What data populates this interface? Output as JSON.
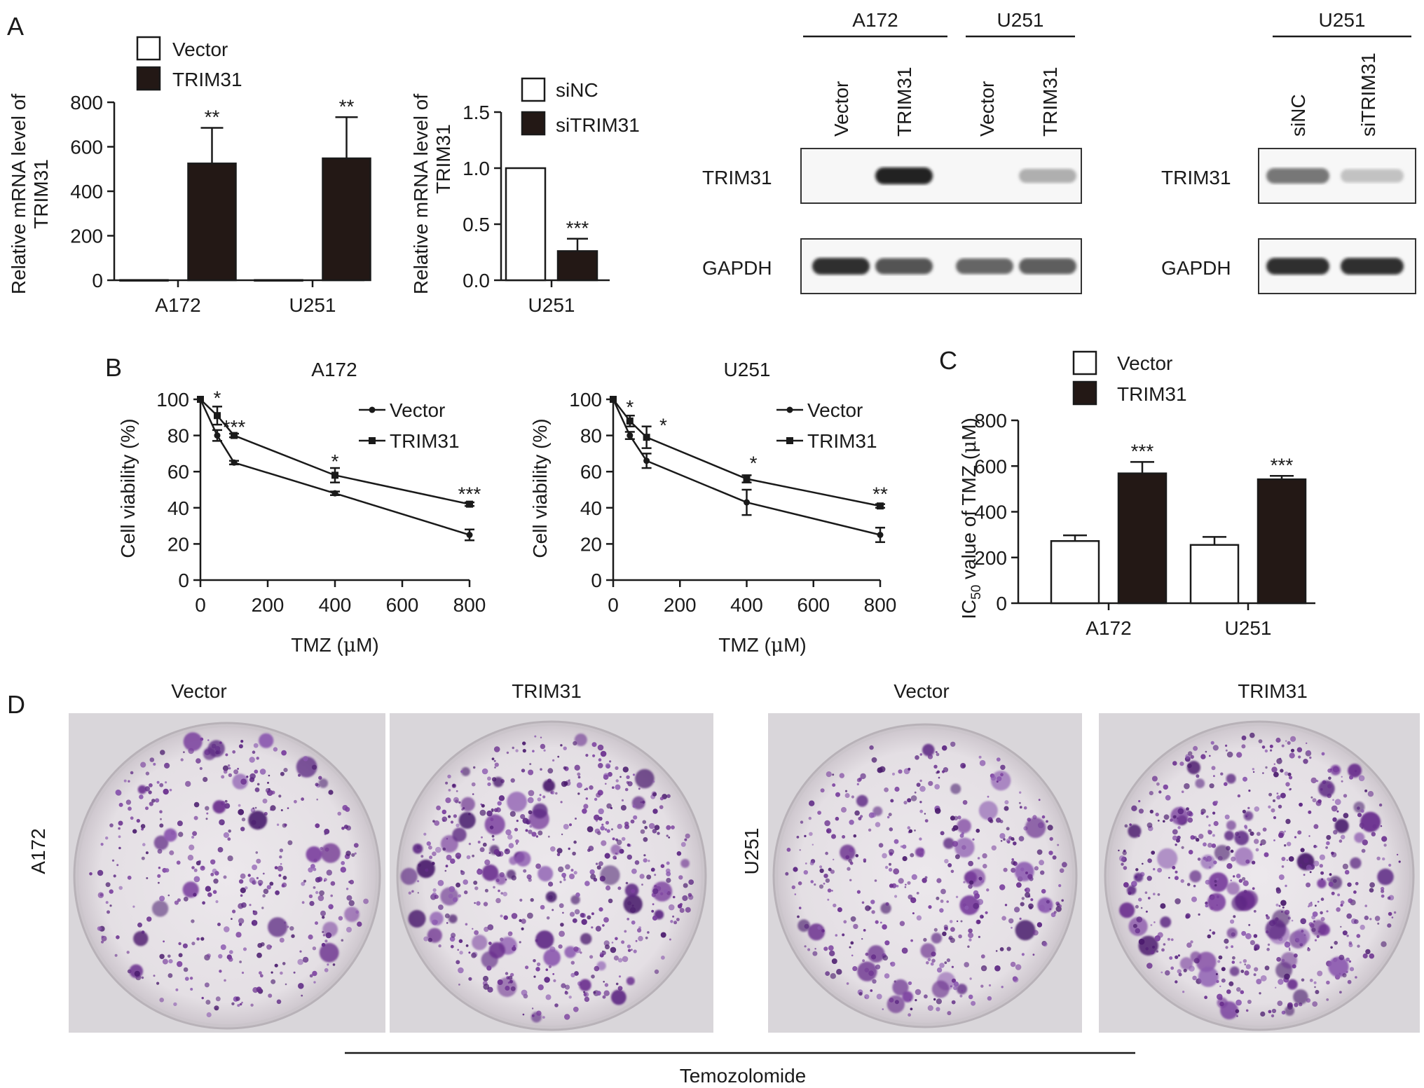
{
  "colors": {
    "dark": "#231815",
    "light": "#ffffff",
    "dish_purple": "#6a2f8e",
    "dish_bg": "#e6e1e6",
    "blot_bg": "#f6f6f6"
  },
  "panels": {
    "A": "A",
    "B": "B",
    "C": "C",
    "D": "D"
  },
  "chart_data": [
    {
      "id": "A1",
      "type": "bar",
      "categories": [
        "A172",
        "U251"
      ],
      "series": [
        {
          "name": "Vector",
          "color": "#ffffff",
          "values": [
            1,
            1
          ],
          "errors": [
            0,
            0
          ],
          "sig": [
            "",
            ""
          ]
        },
        {
          "name": "TRIM31",
          "color": "#231815",
          "values": [
            525,
            548
          ],
          "errors": [
            160,
            185
          ],
          "sig": [
            "**",
            "**"
          ]
        }
      ],
      "ylabel_line1": "Relative mRNA level of",
      "ylabel_line2": "TRIM31",
      "ylim": [
        0,
        800
      ],
      "yticks": [
        "0",
        "200",
        "400",
        "600",
        "800"
      ],
      "legend": "top-left"
    },
    {
      "id": "A2",
      "type": "bar",
      "categories": [
        "U251"
      ],
      "series": [
        {
          "name": "siNC",
          "color": "#ffffff",
          "values": [
            1.0
          ],
          "errors": [
            0
          ],
          "sig": [
            ""
          ]
        },
        {
          "name": "siTRIM31",
          "color": "#231815",
          "values": [
            0.26
          ],
          "errors": [
            0.11
          ],
          "sig": [
            "***"
          ]
        }
      ],
      "ylabel_line1": "Relative mRNA level of",
      "ylabel_line2": "TRIM31",
      "ylim": [
        0,
        1.5
      ],
      "yticks": [
        "0.0",
        "0.5",
        "1.0",
        "1.5"
      ],
      "legend": "top-right"
    },
    {
      "id": "B1",
      "type": "line",
      "title": "A172",
      "x": [
        0,
        50,
        100,
        400,
        800
      ],
      "series": [
        {
          "name": "Vector",
          "marker": "circle",
          "values": [
            100,
            80,
            65,
            48,
            25
          ],
          "errors": [
            0,
            3,
            1,
            1,
            3
          ]
        },
        {
          "name": "TRIM31",
          "marker": "square",
          "values": [
            100,
            91,
            80,
            58,
            42
          ],
          "errors": [
            0,
            5,
            1,
            4,
            1
          ]
        }
      ],
      "sig": [
        {
          "x": 50,
          "y": 97,
          "text": "*"
        },
        {
          "x": 100,
          "y": 81,
          "text": "***"
        },
        {
          "x": 400,
          "y": 62,
          "text": "*"
        },
        {
          "x": 800,
          "y": 44,
          "text": "***"
        }
      ],
      "xlabel_pre": "TMZ (",
      "xlabel_mu": "μ",
      "xlabel_post": "M)",
      "ylabel": "Cell viability (%)",
      "xlim": [
        0,
        800
      ],
      "ylim": [
        0,
        100
      ],
      "xticks": [
        "0",
        "200",
        "400",
        "600",
        "800"
      ],
      "yticks": [
        "0",
        "20",
        "40",
        "60",
        "80",
        "100"
      ],
      "legend": "top-right"
    },
    {
      "id": "B2",
      "type": "line",
      "title": "U251",
      "x": [
        0,
        50,
        100,
        400,
        800
      ],
      "series": [
        {
          "name": "Vector",
          "marker": "circle",
          "values": [
            100,
            80,
            66,
            43,
            25
          ],
          "errors": [
            0,
            2,
            4,
            7,
            4
          ]
        },
        {
          "name": "TRIM31",
          "marker": "square",
          "values": [
            100,
            88,
            79,
            56,
            41
          ],
          "errors": [
            0,
            3,
            6,
            2,
            1
          ]
        }
      ],
      "sig": [
        {
          "x": 50,
          "y": 92,
          "text": "*"
        },
        {
          "x": 150,
          "y": 82,
          "text": "*"
        },
        {
          "x": 420,
          "y": 61,
          "text": "*"
        },
        {
          "x": 800,
          "y": 44,
          "text": "**"
        }
      ],
      "xlabel_pre": "TMZ (",
      "xlabel_mu": "μ",
      "xlabel_post": "M)",
      "ylabel": "Cell viability (%)",
      "xlim": [
        0,
        800
      ],
      "ylim": [
        0,
        100
      ],
      "xticks": [
        "0",
        "200",
        "400",
        "600",
        "800"
      ],
      "yticks": [
        "0",
        "20",
        "40",
        "60",
        "80",
        "100"
      ],
      "legend": "top-right"
    },
    {
      "id": "C",
      "type": "bar",
      "categories": [
        "A172",
        "U251"
      ],
      "series": [
        {
          "name": "Vector",
          "color": "#ffffff",
          "values": [
            272,
            255
          ],
          "errors": [
            25,
            35
          ],
          "sig": [
            "",
            ""
          ]
        },
        {
          "name": "TRIM31",
          "color": "#231815",
          "values": [
            568,
            542
          ],
          "errors": [
            50,
            15
          ],
          "sig": [
            "***",
            "***"
          ]
        }
      ],
      "ylabel_pre": "IC",
      "ylabel_sub": "50",
      "ylabel_mid": " value of TMZ (",
      "ylabel_mu": "μ",
      "ylabel_post": "M)",
      "ylim": [
        0,
        800
      ],
      "yticks": [
        "0",
        "200",
        "400",
        "600",
        "800"
      ],
      "legend": "top-left"
    }
  ],
  "western_blot": {
    "left": {
      "groups": [
        "A172",
        "U251"
      ],
      "lanes": [
        "Vector",
        "TRIM31",
        "Vector",
        "TRIM31"
      ],
      "rows": [
        {
          "label": "TRIM31",
          "intensity": [
            0.0,
            1.0,
            0.0,
            0.35
          ]
        },
        {
          "label": "GAPDH",
          "intensity": [
            0.95,
            0.8,
            0.72,
            0.75
          ]
        }
      ]
    },
    "right": {
      "groups": [
        "U251"
      ],
      "lanes": [
        "siNC",
        "siTRIM31"
      ],
      "rows": [
        {
          "label": "TRIM31",
          "intensity": [
            0.65,
            0.22
          ]
        },
        {
          "label": "GAPDH",
          "intensity": [
            0.95,
            0.95
          ]
        }
      ]
    }
  },
  "colony": {
    "dish_titles": [
      "Vector",
      "TRIM31",
      "Vector",
      "TRIM31"
    ],
    "row_labels": [
      "A172",
      "U251"
    ],
    "density": [
      0.45,
      0.9,
      0.55,
      0.95
    ],
    "treatment": "Temozolomide"
  }
}
